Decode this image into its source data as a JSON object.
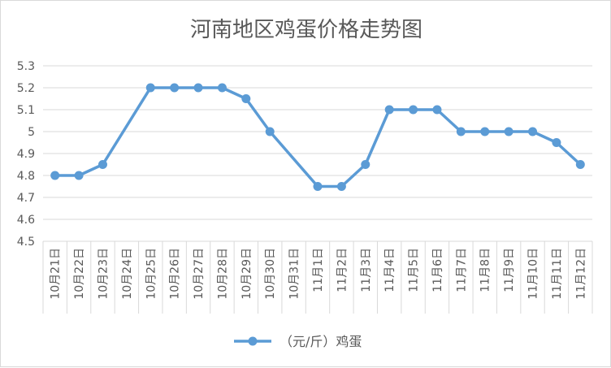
{
  "chart_data": {
    "type": "line",
    "title": "河南地区鸡蛋价格走势图",
    "xlabel": "",
    "ylabel": "",
    "categories": [
      "10月21日",
      "10月22日",
      "10月23日",
      "10月24日",
      "10月25日",
      "10月26日",
      "10月27日",
      "10月28日",
      "10月29日",
      "10月30日",
      "10月31日",
      "11月1日",
      "11月2日",
      "11月3日",
      "11月4日",
      "11月5日",
      "11月6日",
      "11月7日",
      "11月8日",
      "11月9日",
      "11月10日",
      "11月11日",
      "11月12日"
    ],
    "series": [
      {
        "name": "（元/斤）鸡蛋",
        "values": [
          4.8,
          4.8,
          4.85,
          null,
          5.2,
          5.2,
          5.2,
          5.2,
          5.15,
          5.0,
          null,
          4.75,
          4.75,
          4.85,
          5.1,
          5.1,
          5.1,
          5.0,
          5.0,
          5.0,
          5.0,
          4.95,
          4.85
        ]
      }
    ],
    "ylim": [
      4.5,
      5.3
    ],
    "yticks": [
      "4.5",
      "4.6",
      "4.7",
      "4.8",
      "4.9",
      "5",
      "5.1",
      "5.2",
      "5.3"
    ],
    "grid": true,
    "legend_position": "bottom",
    "colors": {
      "series": "#5b9bd5",
      "grid": "#d9d9d9",
      "text": "#595959"
    }
  }
}
